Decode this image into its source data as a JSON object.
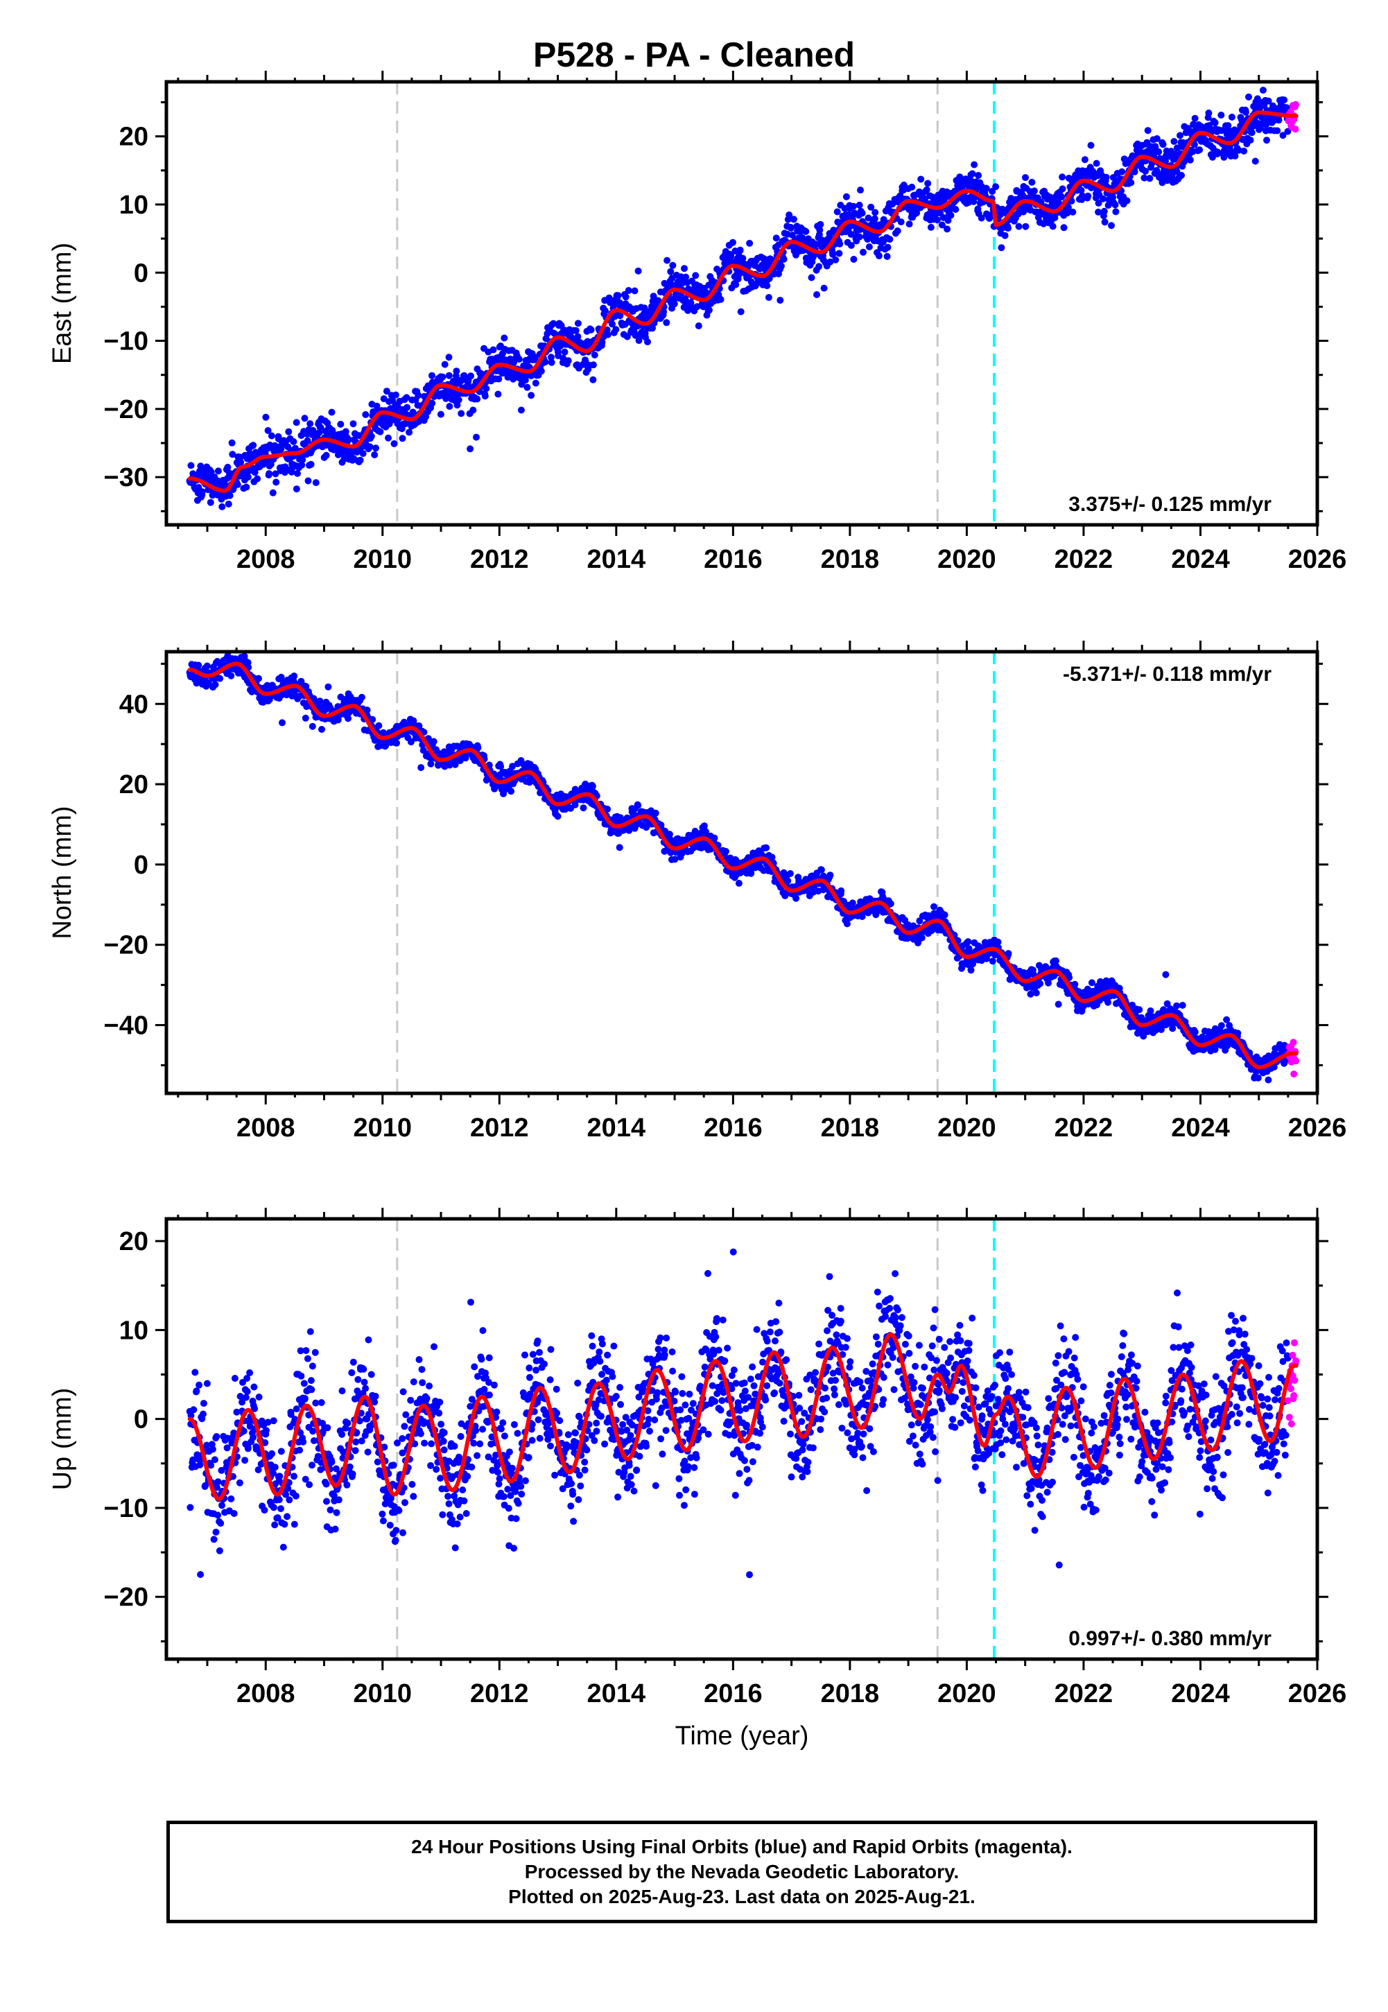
{
  "title": "P528  - PA - Cleaned",
  "xlabel": "Time (year)",
  "colors": {
    "final_orbits": "#0000ff",
    "rapid_orbits": "#ff00ff",
    "model_fit": "#ff0000",
    "antenna_change": "#c8c8c8",
    "equipment_change": "#00ffff"
  },
  "chart_data": [
    {
      "type": "scatter",
      "component": "East",
      "ylabel": "East (mm)",
      "rate_label": "3.375+/- 0.125 mm/yr",
      "rate_position": "bottom-right",
      "xlim": [
        2006.3,
        2026.0
      ],
      "ylim": [
        -37,
        28
      ],
      "x_ticks": [
        2008,
        2010,
        2012,
        2014,
        2016,
        2018,
        2020,
        2022,
        2024,
        2026
      ],
      "y_ticks": [
        -30,
        -20,
        -10,
        0,
        10,
        20
      ],
      "time_range": [
        2006.7,
        2025.64
      ],
      "rapid_orbits_from": 2025.5,
      "rate_mm_per_yr": 3.375,
      "annual_amplitude_mm": 2.0,
      "scatter_mm": 1.6,
      "offsets": [
        {
          "at": 2019.5,
          "mm": -2.0
        },
        {
          "at": 2020.47,
          "mm": -4.0
        }
      ],
      "fit_points": [
        [
          2006.7,
          -30.2
        ],
        [
          2007.3,
          -32.0
        ],
        [
          2007.6,
          -28.5
        ],
        [
          2008.0,
          -27.0
        ],
        [
          2008.5,
          -26.5
        ],
        [
          2009.0,
          -24.5
        ],
        [
          2009.5,
          -25.5
        ],
        [
          2010.0,
          -20.5
        ],
        [
          2010.5,
          -21.5
        ],
        [
          2011.0,
          -16.5
        ],
        [
          2011.5,
          -17.5
        ],
        [
          2012.0,
          -13.5
        ],
        [
          2012.5,
          -14.5
        ],
        [
          2013.0,
          -9.5
        ],
        [
          2013.5,
          -11.5
        ],
        [
          2014.0,
          -5.5
        ],
        [
          2014.5,
          -7.5
        ],
        [
          2015.0,
          -2.5
        ],
        [
          2015.5,
          -4.0
        ],
        [
          2016.0,
          1.0
        ],
        [
          2016.5,
          -0.5
        ],
        [
          2017.0,
          4.5
        ],
        [
          2017.5,
          3.0
        ],
        [
          2018.0,
          7.5
        ],
        [
          2018.5,
          6.0
        ],
        [
          2019.0,
          10.5
        ],
        [
          2019.5,
          9.5
        ],
        [
          2020.0,
          12.0
        ],
        [
          2020.45,
          10.5
        ],
        [
          2020.5,
          7.0
        ],
        [
          2021.0,
          10.5
        ],
        [
          2021.5,
          9.0
        ],
        [
          2022.0,
          13.5
        ],
        [
          2022.5,
          12.0
        ],
        [
          2023.0,
          17.0
        ],
        [
          2023.5,
          15.5
        ],
        [
          2024.0,
          20.5
        ],
        [
          2024.5,
          19.0
        ],
        [
          2025.0,
          23.5
        ],
        [
          2025.6,
          23.0
        ]
      ],
      "vlines": [
        {
          "x": 2010.25,
          "kind": "antenna_change"
        },
        {
          "x": 2019.5,
          "kind": "antenna_change"
        },
        {
          "x": 2020.47,
          "kind": "equipment_change"
        }
      ]
    },
    {
      "type": "scatter",
      "component": "North",
      "ylabel": "North (mm)",
      "rate_label": "-5.371+/- 0.118 mm/yr",
      "rate_position": "top-right",
      "xlim": [
        2006.3,
        2026.0
      ],
      "ylim": [
        -57,
        53
      ],
      "x_ticks": [
        2008,
        2010,
        2012,
        2014,
        2016,
        2018,
        2020,
        2022,
        2024,
        2026
      ],
      "y_ticks": [
        -40,
        -20,
        0,
        20,
        40
      ],
      "time_range": [
        2006.7,
        2025.64
      ],
      "rapid_orbits_from": 2025.5,
      "rate_mm_per_yr": -5.371,
      "annual_amplitude_mm": 2.5,
      "scatter_mm": 1.4,
      "offsets": [
        {
          "at": 2019.5,
          "mm": -3.0
        },
        {
          "at": 2020.47,
          "mm": 0.0
        }
      ],
      "fit_points": [
        [
          2006.7,
          48.5
        ],
        [
          2007.0,
          47.0
        ],
        [
          2007.5,
          50.0
        ],
        [
          2008.0,
          42.5
        ],
        [
          2008.5,
          44.5
        ],
        [
          2009.0,
          37.0
        ],
        [
          2009.5,
          39.5
        ],
        [
          2010.0,
          31.5
        ],
        [
          2010.5,
          34.0
        ],
        [
          2011.0,
          26.0
        ],
        [
          2011.5,
          28.5
        ],
        [
          2012.0,
          20.5
        ],
        [
          2012.5,
          23.0
        ],
        [
          2013.0,
          15.0
        ],
        [
          2013.5,
          17.5
        ],
        [
          2014.0,
          9.5
        ],
        [
          2014.5,
          12.0
        ],
        [
          2015.0,
          4.0
        ],
        [
          2015.5,
          6.5
        ],
        [
          2016.0,
          -1.0
        ],
        [
          2016.5,
          1.5
        ],
        [
          2017.0,
          -6.5
        ],
        [
          2017.5,
          -4.0
        ],
        [
          2018.0,
          -12.0
        ],
        [
          2018.5,
          -9.5
        ],
        [
          2019.0,
          -17.0
        ],
        [
          2019.5,
          -14.0
        ],
        [
          2020.0,
          -23.0
        ],
        [
          2020.45,
          -21.0
        ],
        [
          2021.0,
          -29.0
        ],
        [
          2021.5,
          -26.5
        ],
        [
          2022.0,
          -34.0
        ],
        [
          2022.5,
          -31.5
        ],
        [
          2023.0,
          -40.0
        ],
        [
          2023.5,
          -37.5
        ],
        [
          2024.0,
          -45.0
        ],
        [
          2024.5,
          -42.5
        ],
        [
          2025.0,
          -50.5
        ],
        [
          2025.6,
          -47.0
        ]
      ],
      "vlines": [
        {
          "x": 2010.25,
          "kind": "antenna_change"
        },
        {
          "x": 2019.5,
          "kind": "antenna_change"
        },
        {
          "x": 2020.47,
          "kind": "equipment_change"
        }
      ]
    },
    {
      "type": "scatter",
      "component": "Up",
      "ylabel": "Up (mm)",
      "rate_label": "0.997+/- 0.380 mm/yr",
      "rate_position": "bottom-right",
      "xlim": [
        2006.3,
        2026.0
      ],
      "ylim": [
        -27,
        22.5
      ],
      "x_ticks": [
        2008,
        2010,
        2012,
        2014,
        2016,
        2018,
        2020,
        2022,
        2024,
        2026
      ],
      "y_ticks": [
        -20,
        -10,
        0,
        10,
        20
      ],
      "time_range": [
        2006.7,
        2025.64
      ],
      "rapid_orbits_from": 2025.5,
      "rate_mm_per_yr": 0.997,
      "annual_amplitude_mm": 5.5,
      "scatter_mm": 3.2,
      "offsets": [],
      "fit_points": [
        [
          2006.7,
          0.0
        ],
        [
          2007.2,
          -9.0
        ],
        [
          2007.7,
          1.0
        ],
        [
          2008.2,
          -8.5
        ],
        [
          2008.7,
          1.5
        ],
        [
          2009.2,
          -7.5
        ],
        [
          2009.7,
          2.5
        ],
        [
          2010.2,
          -8.5
        ],
        [
          2010.7,
          1.5
        ],
        [
          2011.2,
          -8.0
        ],
        [
          2011.7,
          2.5
        ],
        [
          2012.2,
          -7.0
        ],
        [
          2012.7,
          3.5
        ],
        [
          2013.2,
          -6.0
        ],
        [
          2013.7,
          4.0
        ],
        [
          2014.2,
          -4.5
        ],
        [
          2014.7,
          5.5
        ],
        [
          2015.2,
          -3.5
        ],
        [
          2015.7,
          6.5
        ],
        [
          2016.2,
          -2.5
        ],
        [
          2016.7,
          7.5
        ],
        [
          2017.2,
          -2.0
        ],
        [
          2017.7,
          8.0
        ],
        [
          2018.2,
          -1.0
        ],
        [
          2018.7,
          9.5
        ],
        [
          2019.2,
          0.0
        ],
        [
          2019.5,
          5.0
        ],
        [
          2019.7,
          3.0
        ],
        [
          2019.9,
          6.0
        ],
        [
          2020.3,
          -3.0
        ],
        [
          2020.5,
          0.5
        ],
        [
          2020.7,
          2.5
        ],
        [
          2021.2,
          -6.5
        ],
        [
          2021.7,
          3.5
        ],
        [
          2022.2,
          -5.5
        ],
        [
          2022.7,
          4.5
        ],
        [
          2023.2,
          -4.5
        ],
        [
          2023.7,
          5.0
        ],
        [
          2024.2,
          -3.5
        ],
        [
          2024.7,
          6.5
        ],
        [
          2025.2,
          -2.5
        ],
        [
          2025.6,
          6.0
        ]
      ],
      "vlines": [
        {
          "x": 2010.25,
          "kind": "antenna_change"
        },
        {
          "x": 2019.5,
          "kind": "antenna_change"
        },
        {
          "x": 2020.47,
          "kind": "equipment_change"
        }
      ]
    }
  ],
  "footer": {
    "line1": "24 Hour Positions Using Final Orbits (blue) and Rapid Orbits (magenta).",
    "line2": "Processed by the Nevada Geodetic Laboratory.",
    "line3": "Plotted on 2025-Aug-23. Last data on 2025-Aug-21."
  }
}
